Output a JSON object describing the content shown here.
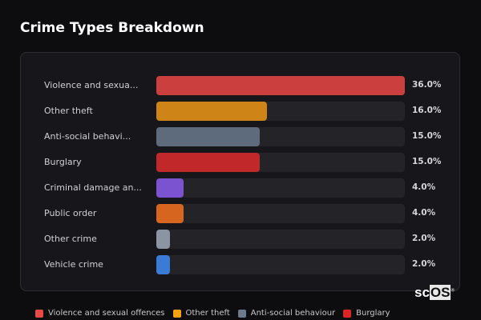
{
  "title": "Crime Types Breakdown",
  "chart_data": {
    "type": "bar",
    "orientation": "horizontal",
    "title": "Crime Types Breakdown",
    "categories": [
      "Violence and sexual offences",
      "Other theft",
      "Anti-social behaviour",
      "Burglary",
      "Criminal damage and arson",
      "Public order",
      "Other crime",
      "Vehicle crime"
    ],
    "display_labels": [
      "Violence and sexua...",
      "Other theft",
      "Anti-social behavi...",
      "Burglary",
      "Criminal damage an...",
      "Public order",
      "Other crime",
      "Vehicle crime"
    ],
    "values": [
      36.0,
      16.0,
      15.0,
      15.0,
      4.0,
      4.0,
      2.0,
      2.0
    ],
    "value_labels": [
      "36.0%",
      "16.0%",
      "15.0%",
      "15.0%",
      "4.0%",
      "4.0%",
      "2.0%",
      "2.0%"
    ],
    "colors": [
      "#cc3f3f",
      "#cf8418",
      "#5d6b7d",
      "#c0282a",
      "#7b52d0",
      "#d6661f",
      "#8a94a3",
      "#3a7bd5"
    ],
    "xlim": [
      0,
      36
    ],
    "unit": "%"
  },
  "legend": [
    {
      "label": "Violence and sexual offences",
      "color": "#e84a4a"
    },
    {
      "label": "Other theft",
      "color": "#f5a40f"
    },
    {
      "label": "Anti-social behaviour",
      "color": "#6b7a8c"
    },
    {
      "label": "Burglary",
      "color": "#dc2626"
    }
  ],
  "logo": {
    "text_a": "sc",
    "text_b": "OS",
    "mark": "®"
  }
}
